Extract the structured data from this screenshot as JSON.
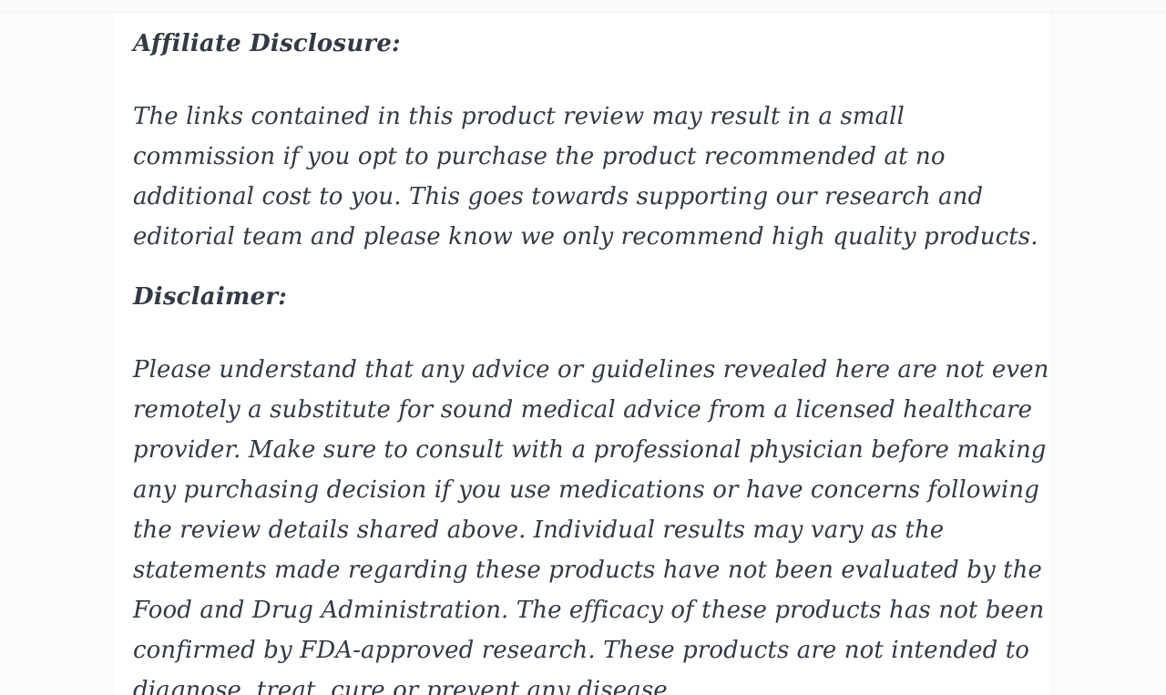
{
  "page": {
    "background_color": "#fcfcfc",
    "content_background_color": "#ffffff",
    "text_color": "#333a45"
  },
  "article": {
    "sections": [
      {
        "heading": "Affiliate Disclosure:",
        "body": "The links contained in this product review may result in a small commission if you opt to purchase the product recommended at no additional cost to you. This goes towards supporting our research and editorial team and please know we only recommend high quality products."
      },
      {
        "heading": "Disclaimer:",
        "body": "Please understand that any advice or guidelines revealed here are not even remotely a substitute for sound medical advice from a licensed healthcare provider. Make sure to consult with a professional physician before making any purchasing decision if you use medications or have concerns following the review details shared above. Individual results may vary as the statements made regarding these products have not been evaluated by the Food and Drug Administration. The efficacy of these products has not been confirmed by FDA-approved research. These products are not intended to diagnose, treat, cure or prevent any disease."
      }
    ]
  }
}
